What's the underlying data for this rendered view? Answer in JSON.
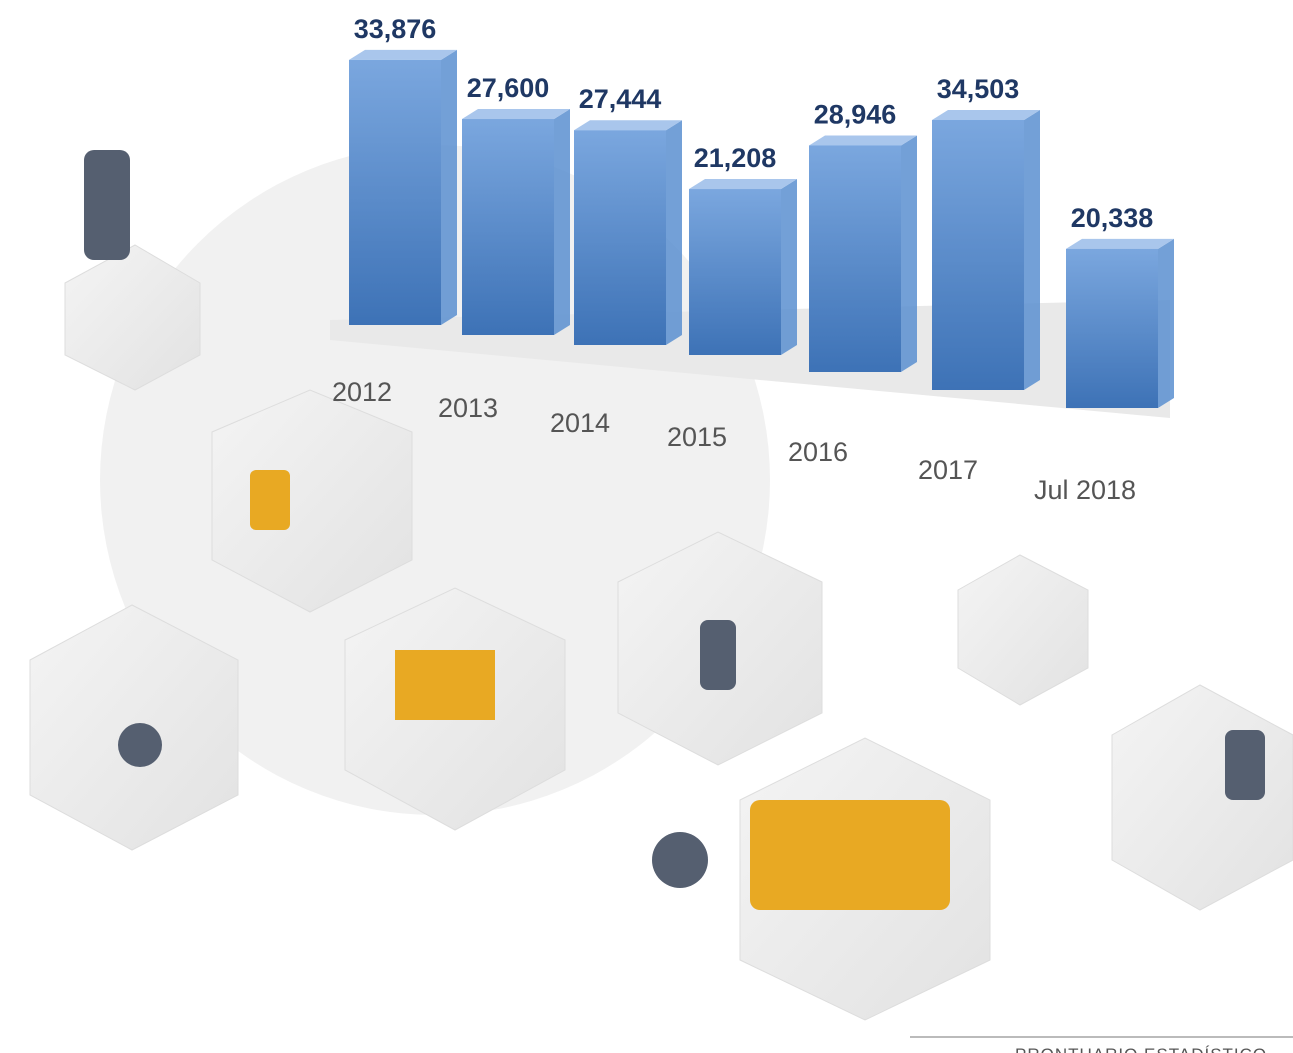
{
  "chart_data": {
    "type": "bar",
    "categories": [
      "2012",
      "2013",
      "2014",
      "2015",
      "2016",
      "2017",
      "Jul 2018"
    ],
    "values": [
      33876,
      27600,
      27444,
      21208,
      28946,
      34503,
      20338
    ],
    "value_labels": [
      "33,876",
      "27,600",
      "27,444",
      "21,208",
      "28,946",
      "34,503",
      "20,338"
    ],
    "color": "#5a8fd0",
    "label_color": "#1f3864"
  },
  "footer": "PRONTUARIO ESTADÍSTICO"
}
